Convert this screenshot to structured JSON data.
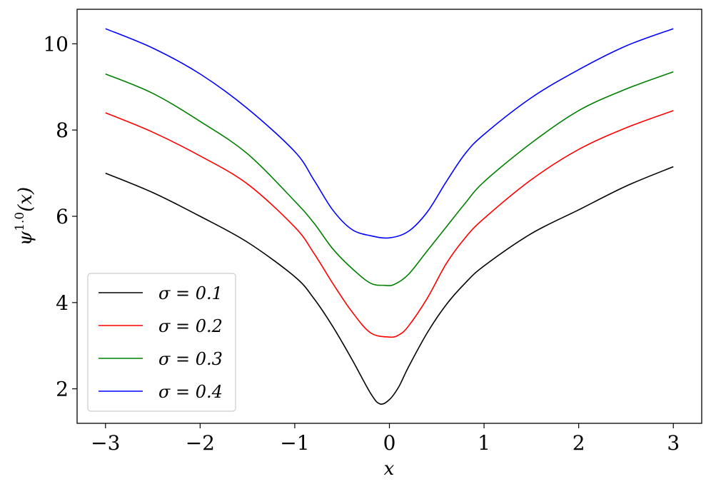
{
  "chart_data": {
    "type": "line",
    "title": "",
    "xlabel": "x",
    "ylabel": {
      "base": "ψ",
      "sup": "1.0",
      "suffix": "(x)"
    },
    "xlim": [
      -3.3,
      3.3
    ],
    "ylim": [
      1.2,
      10.8
    ],
    "xticks": [
      -3,
      -2,
      -1,
      0,
      1,
      2,
      3
    ],
    "xtick_labels": [
      "−3",
      "−2",
      "−1",
      "0",
      "1",
      "2",
      "3"
    ],
    "yticks": [
      2,
      4,
      6,
      8,
      10
    ],
    "ytick_labels": [
      "2",
      "4",
      "6",
      "8",
      "10"
    ],
    "grid": false,
    "legend_position": "lower-left",
    "series": [
      {
        "name": "σ = 0.1",
        "color": "#000000",
        "x": [
          -3.0,
          -2.5,
          -2.0,
          -1.5,
          -1.0,
          -0.8,
          -0.6,
          -0.4,
          -0.2,
          -0.1,
          0.0,
          0.1,
          0.2,
          0.4,
          0.6,
          0.8,
          1.0,
          1.5,
          2.0,
          2.5,
          3.0
        ],
        "y": [
          7.0,
          6.55,
          6.0,
          5.4,
          4.6,
          4.1,
          3.45,
          2.7,
          1.9,
          1.65,
          1.75,
          2.05,
          2.5,
          3.3,
          3.95,
          4.45,
          4.85,
          5.6,
          6.15,
          6.7,
          7.15
        ]
      },
      {
        "name": "σ = 0.2",
        "color": "#ff0000",
        "x": [
          -3.0,
          -2.5,
          -2.0,
          -1.5,
          -1.0,
          -0.8,
          -0.6,
          -0.4,
          -0.2,
          0.0,
          0.1,
          0.2,
          0.4,
          0.6,
          0.8,
          1.0,
          1.5,
          2.0,
          2.5,
          3.0
        ],
        "y": [
          8.4,
          7.95,
          7.4,
          6.75,
          5.75,
          5.15,
          4.45,
          3.8,
          3.3,
          3.2,
          3.25,
          3.45,
          4.1,
          4.9,
          5.5,
          5.95,
          6.85,
          7.55,
          8.05,
          8.45
        ]
      },
      {
        "name": "σ = 0.3",
        "color": "#008000",
        "x": [
          -3.0,
          -2.5,
          -2.0,
          -1.5,
          -1.0,
          -0.8,
          -0.6,
          -0.4,
          -0.2,
          -0.05,
          0.05,
          0.2,
          0.4,
          0.6,
          0.8,
          1.0,
          1.5,
          2.0,
          2.5,
          3.0
        ],
        "y": [
          9.3,
          8.85,
          8.2,
          7.45,
          6.35,
          5.85,
          5.25,
          4.8,
          4.45,
          4.4,
          4.42,
          4.65,
          5.2,
          5.75,
          6.3,
          6.8,
          7.7,
          8.45,
          8.95,
          9.35
        ]
      },
      {
        "name": "σ = 0.4",
        "color": "#0000ff",
        "x": [
          -3.0,
          -2.5,
          -2.0,
          -1.5,
          -1.0,
          -0.8,
          -0.6,
          -0.4,
          -0.2,
          0.0,
          0.2,
          0.4,
          0.6,
          0.8,
          1.0,
          1.5,
          2.0,
          2.5,
          3.0
        ],
        "y": [
          10.35,
          9.9,
          9.3,
          8.5,
          7.5,
          6.85,
          6.15,
          5.7,
          5.55,
          5.5,
          5.65,
          6.1,
          6.8,
          7.45,
          7.9,
          8.75,
          9.4,
          9.95,
          10.35
        ]
      }
    ]
  }
}
